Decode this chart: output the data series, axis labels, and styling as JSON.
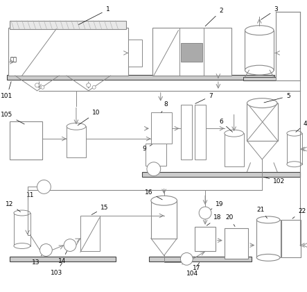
{
  "bg_color": "#ffffff",
  "lc": "#888888",
  "dc": "#444444",
  "gray1": "#cccccc",
  "gray2": "#aaaaaa",
  "gray3": "#e8e8e8",
  "lw": 0.7
}
